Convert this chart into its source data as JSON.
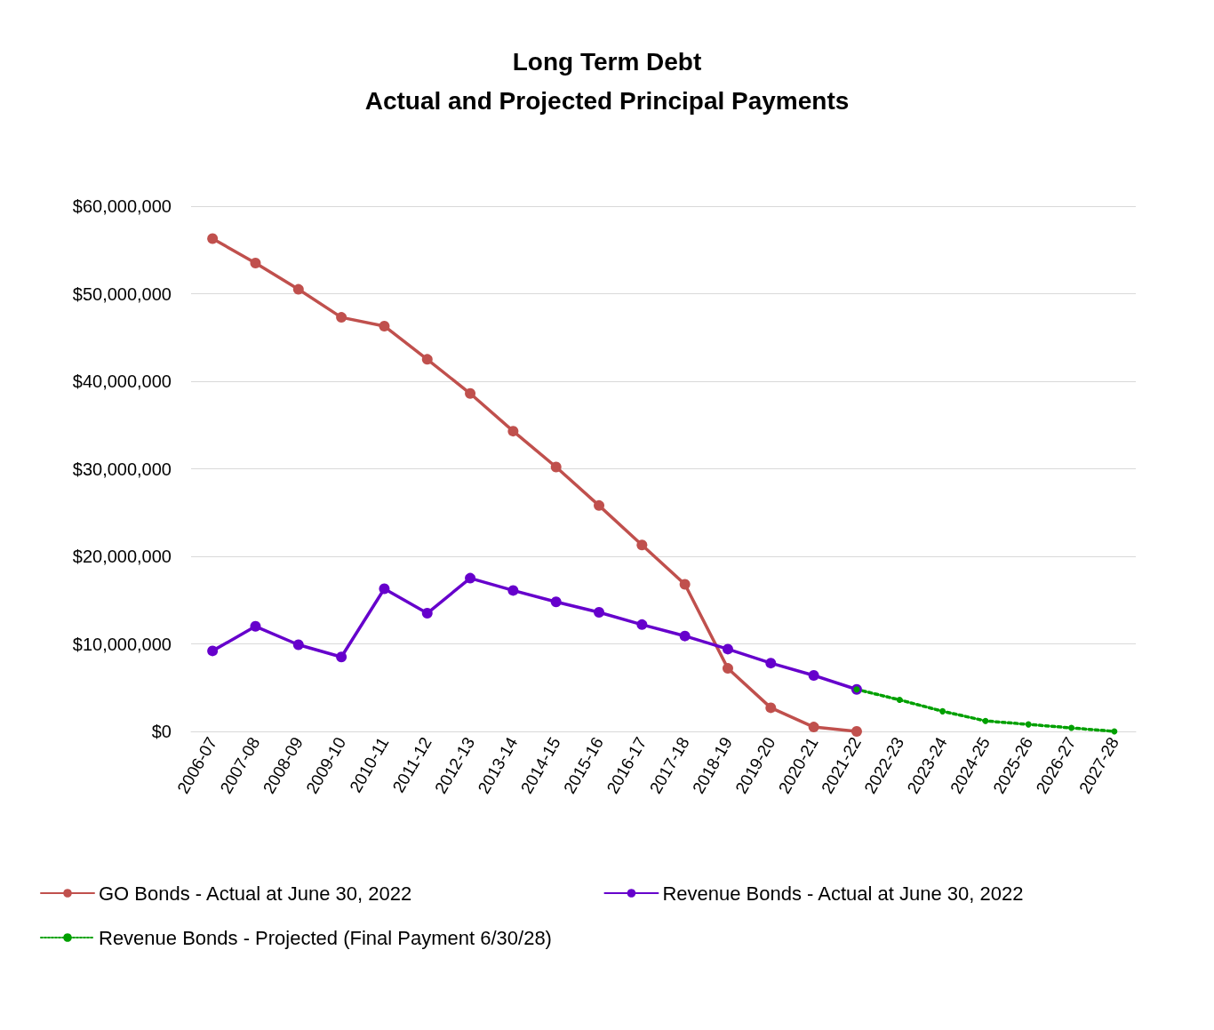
{
  "chart_data": {
    "type": "line",
    "title": "Long Term Debt\nActual and Projected Principal Payments",
    "categories": [
      "2006-07",
      "2007-08",
      "2008-09",
      "2009-10",
      "2010-11",
      "2011-12",
      "2012-13",
      "2013-14",
      "2014-15",
      "2015-16",
      "2016-17",
      "2017-18",
      "2018-19",
      "2019-20",
      "2020-21",
      "2021-22",
      "2022-23",
      "2023-24",
      "2024-25",
      "2025-26",
      "2026-27",
      "2027-28"
    ],
    "series": [
      {
        "name": "GO Bonds - Actual at June 30, 2022",
        "color": "#c0504d",
        "line_style": "solid",
        "values": [
          56300000,
          53500000,
          50500000,
          47300000,
          46300000,
          42500000,
          38600000,
          34300000,
          30200000,
          25800000,
          21300000,
          16800000,
          7200000,
          2700000,
          500000,
          0,
          null,
          null,
          null,
          null,
          null,
          null
        ]
      },
      {
        "name": "Revenue Bonds - Actual at June 30, 2022",
        "color": "#6600cc",
        "line_style": "solid",
        "values": [
          9200000,
          12000000,
          9900000,
          8500000,
          16300000,
          13500000,
          17500000,
          16100000,
          14800000,
          13600000,
          12200000,
          10900000,
          9400000,
          7800000,
          6400000,
          4800000,
          null,
          null,
          null,
          null,
          null,
          null
        ]
      },
      {
        "name": "Revenue Bonds - Projected (Final Payment 6/30/28)",
        "color": "#00a000",
        "line_style": "dotted",
        "values": [
          null,
          null,
          null,
          null,
          null,
          null,
          null,
          null,
          null,
          null,
          null,
          null,
          null,
          null,
          null,
          4800000,
          3600000,
          2300000,
          1200000,
          800000,
          400000,
          0
        ]
      }
    ],
    "ylim": [
      0,
      60000000
    ],
    "yticks": [
      {
        "value": 0,
        "label": "$0"
      },
      {
        "value": 10000000,
        "label": "$10,000,000"
      },
      {
        "value": 20000000,
        "label": "$20,000,000"
      },
      {
        "value": 30000000,
        "label": "$30,000,000"
      },
      {
        "value": 40000000,
        "label": "$40,000,000"
      },
      {
        "value": 50000000,
        "label": "$50,000,000"
      },
      {
        "value": 60000000,
        "label": "$60,000,000"
      }
    ],
    "grid": "y",
    "legend": "bottom",
    "marker": "circle"
  }
}
